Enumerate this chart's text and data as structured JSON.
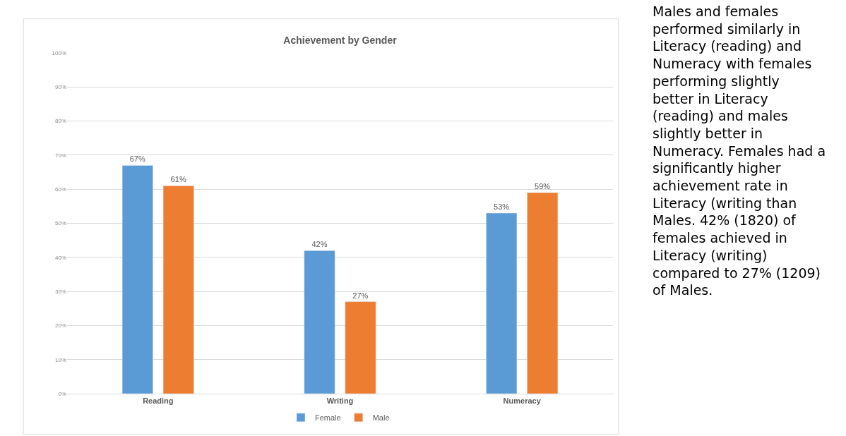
{
  "chart_data": {
    "type": "bar",
    "title": "Achievement by Gender",
    "categories": [
      "Reading",
      "Writing",
      "Numeracy"
    ],
    "series": [
      {
        "name": "Female",
        "color": "#5b9bd5",
        "values": [
          67,
          42,
          53
        ],
        "value_labels": [
          "67%",
          "42%",
          "53%"
        ]
      },
      {
        "name": "Male",
        "color": "#ed7d31",
        "values": [
          61,
          27,
          59
        ],
        "value_labels": [
          "61%",
          "27%",
          "59%"
        ]
      }
    ],
    "ylim": [
      0,
      100
    ],
    "yticks": [
      {
        "value": 0,
        "label": "0%"
      },
      {
        "value": 10,
        "label": "10%"
      },
      {
        "value": 20,
        "label": "20%"
      },
      {
        "value": 30,
        "label": "30%"
      },
      {
        "value": 40,
        "label": "40%"
      },
      {
        "value": 50,
        "label": "50%"
      },
      {
        "value": 60,
        "label": "60%"
      },
      {
        "value": 70,
        "label": "70%"
      },
      {
        "value": 80,
        "label": "80%"
      },
      {
        "value": 90,
        "label": "90%"
      },
      {
        "value": 100,
        "label": "100%"
      }
    ],
    "grid": "y",
    "legend": "bottom",
    "annotations": [
      "Males and females performed similarly in Literacy (reading) and Numeracy with females performing slightly better in Literacy (reading) and males slightly better in Numeracy. Females had a significantly higher achievement rate in Literacy (writing than Males. 42% (1820) of females achieved in Literacy (writing) compared to 27% (1209) of Males."
    ]
  }
}
